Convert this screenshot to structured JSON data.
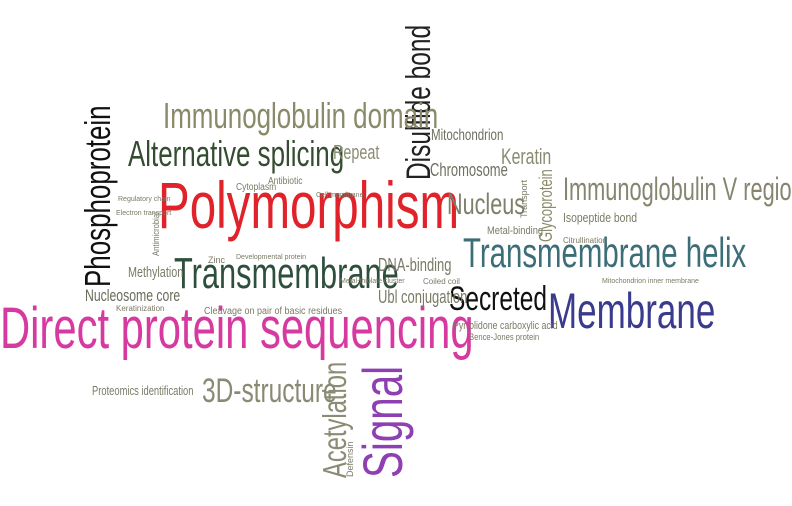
{
  "words": [
    {
      "id": "direct-protein-sequencing",
      "text": "Direct protein sequencing",
      "color": "#d63aa1"
    },
    {
      "id": "polymorphism",
      "text": "Polymorphism",
      "color": "#e0222a"
    },
    {
      "id": "transmembrane-helix",
      "text": "Transmembrane helix",
      "color": "#3c6e78"
    },
    {
      "id": "membrane",
      "text": "Membrane",
      "color": "#3b3b8e"
    },
    {
      "id": "signal",
      "text": "Signal",
      "color": "#8e3fb2"
    },
    {
      "id": "phosphoprotein",
      "text": "Phosphoprotein",
      "color": "#111111"
    },
    {
      "id": "disulfide-bond",
      "text": "Disulfide bond",
      "color": "#222222"
    },
    {
      "id": "alternative-splicing",
      "text": "Alternative splicing",
      "color": "#344d30"
    },
    {
      "id": "transmembrane",
      "text": "Transmembrane",
      "color": "#2f4f3e"
    },
    {
      "id": "immunoglobulin-domain",
      "text": "Immunoglobulin domain",
      "color": "#8a8a6a"
    },
    {
      "id": "immunoglobulin-v-region",
      "text": "Immunoglobulin V region",
      "color": "#858570"
    },
    {
      "id": "acetylation",
      "text": "Acetylation",
      "color": "#8c8c74"
    },
    {
      "id": "three-d-structure",
      "text": "3D-structure",
      "color": "#8a8a74"
    },
    {
      "id": "secreted",
      "text": "Secreted",
      "color": "#111111"
    },
    {
      "id": "nucleus",
      "text": "Nucleus",
      "color": "#7f7f6a"
    },
    {
      "id": "glycoprotein",
      "text": "Glycoprotein",
      "color": "#8a8a6a"
    },
    {
      "id": "repeat",
      "text": "Repeat",
      "color": "#8a8a72"
    },
    {
      "id": "keratin",
      "text": "Keratin",
      "color": "#8a8a72"
    },
    {
      "id": "chromosome",
      "text": "Chromosome",
      "color": "#6f6f60"
    },
    {
      "id": "mitochondrion",
      "text": "Mitochondrion",
      "color": "#6f6f60"
    },
    {
      "id": "dna-binding",
      "text": "DNA-binding",
      "color": "#7a7a66"
    },
    {
      "id": "ubl-conjugation",
      "text": "Ubl conjugation",
      "color": "#7a7a66"
    },
    {
      "id": "nucleosome-core",
      "text": "Nucleosome core",
      "color": "#6a6a5a"
    },
    {
      "id": "methylation",
      "text": "Methylation",
      "color": "#7a7a66"
    },
    {
      "id": "proteomics-identification",
      "text": "Proteomics identification",
      "color": "#7a7a66"
    },
    {
      "id": "cleavage-on-pair",
      "text": "Cleavage on pair of basic residues",
      "color": "#7a7a66"
    },
    {
      "id": "pyrrolidone-carboxylic-acid",
      "text": "Pyrrolidone carboxylic acid",
      "color": "#7a7a66"
    },
    {
      "id": "bence-jones-protein",
      "text": "Bence-Jones protein",
      "color": "#7a7a66"
    },
    {
      "id": "isopeptide-bond",
      "text": "Isopeptide bond",
      "color": "#7a7a66"
    },
    {
      "id": "metal-binding",
      "text": "Metal-binding",
      "color": "#7a7a66"
    },
    {
      "id": "mitochondrion-inner-membrane",
      "text": "Mitochondrion inner membrane",
      "color": "#7a7a66"
    },
    {
      "id": "cytoplasm",
      "text": "Cytoplasm",
      "color": "#7a7a66"
    },
    {
      "id": "antibiotic",
      "text": "Antibiotic",
      "color": "#7a7a66"
    },
    {
      "id": "antimicrobial",
      "text": "Antimicrobial",
      "color": "#7a7a66"
    },
    {
      "id": "zinc",
      "text": "Zinc",
      "color": "#7a7a66"
    },
    {
      "id": "keratinization",
      "text": "Keratinization",
      "color": "#7a7a66"
    },
    {
      "id": "transport",
      "text": "Transport",
      "color": "#7a7a66"
    },
    {
      "id": "coiled-coil",
      "text": "Coiled coil",
      "color": "#7a7a66"
    },
    {
      "id": "citrullination",
      "text": "Citrullination",
      "color": "#7a7a66"
    },
    {
      "id": "cell-membrane",
      "text": "Cell membrane",
      "color": "#7a7a66"
    },
    {
      "id": "developmental-protein",
      "text": "Developmental protein",
      "color": "#7a7a66"
    },
    {
      "id": "metal-thiolate-cluster",
      "text": "Metal-thiolate cluster",
      "color": "#7a7a66"
    },
    {
      "id": "regulatory-chain",
      "text": "Regulatory chain",
      "color": "#7a7a66"
    },
    {
      "id": "electron-transport",
      "text": "Electron transport",
      "color": "#7a7a66"
    },
    {
      "id": "defensin",
      "text": "Defensin",
      "color": "#7a7a66"
    }
  ]
}
